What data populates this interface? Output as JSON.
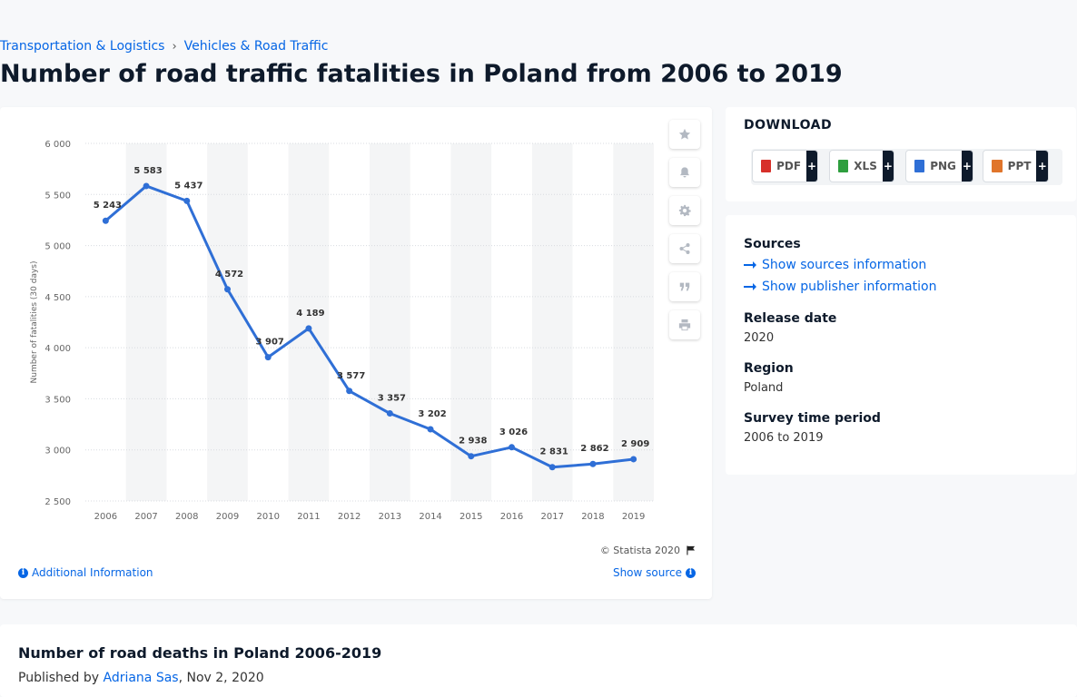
{
  "breadcrumb": {
    "items": [
      "Transportation & Logistics",
      "Vehicles & Road Traffic"
    ]
  },
  "page": {
    "title": "Number of road traffic fatalities in Poland from 2006 to 2019"
  },
  "chart_data": {
    "type": "line",
    "title": "",
    "xlabel": "",
    "ylabel": "Number of fatalities (30 days)",
    "categories": [
      "2006",
      "2007",
      "2008",
      "2009",
      "2010",
      "2011",
      "2012",
      "2013",
      "2014",
      "2015",
      "2016",
      "2017",
      "2018",
      "2019"
    ],
    "values": [
      5243,
      5583,
      5437,
      4572,
      3907,
      4189,
      3577,
      3357,
      3202,
      2938,
      3026,
      2831,
      2862,
      2909
    ],
    "value_labels": [
      "5 243",
      "5 583",
      "5 437",
      "4 572",
      "3 907",
      "4 189",
      "3 577",
      "3 357",
      "3 202",
      "2 938",
      "3 026",
      "2 831",
      "2 862",
      "2 909"
    ],
    "ylim": [
      2500,
      6000
    ],
    "yticks": [
      2500,
      3000,
      3500,
      4000,
      4500,
      5000,
      5500,
      6000
    ],
    "ytick_labels": [
      "2 500",
      "3 000",
      "3 500",
      "4 000",
      "4 500",
      "5 000",
      "5 500",
      "6 000"
    ],
    "grid": true,
    "line_color": "#2f6fd6",
    "band_color": "#f4f5f6"
  },
  "chart_footer": {
    "credit": "© Statista 2020",
    "additional_info": "Additional Information",
    "show_source": "Show source"
  },
  "download": {
    "title": "DOWNLOAD",
    "buttons": [
      {
        "label": "PDF",
        "color": "#d7302a"
      },
      {
        "label": "XLS",
        "color": "#2e9e3e"
      },
      {
        "label": "PNG",
        "color": "#2f6fd6"
      },
      {
        "label": "PPT",
        "color": "#e0752b"
      }
    ],
    "plus": "+"
  },
  "info": {
    "sources_heading": "Sources",
    "sources_link": "Show sources information",
    "publisher_link": "Show publisher information",
    "release_heading": "Release date",
    "release_value": "2020",
    "region_heading": "Region",
    "region_value": "Poland",
    "period_heading": "Survey time period",
    "period_value": "2006 to 2019"
  },
  "bottom": {
    "title": "Number of road deaths in Poland 2006-2019",
    "published_by": "Published by",
    "author": "Adriana Sas",
    "date": ", Nov 2, 2020"
  },
  "colors": {
    "link": "#0666e5",
    "text": "#0e1a2b"
  }
}
